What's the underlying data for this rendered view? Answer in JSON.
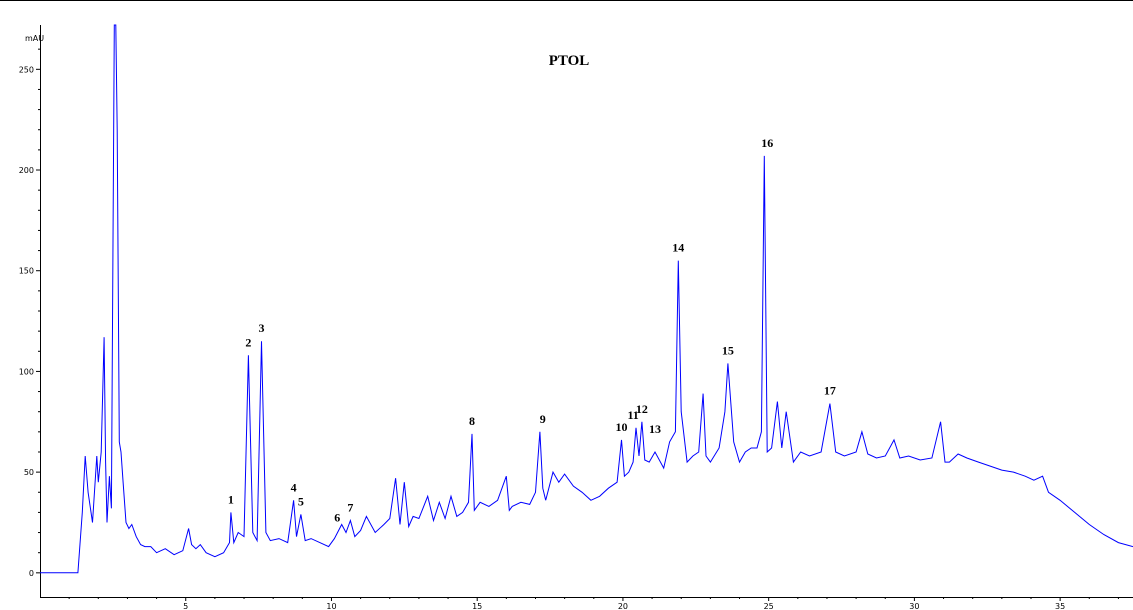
{
  "chart_data": {
    "type": "line",
    "title": "PTOL",
    "ylabel": "mAU",
    "xlabel": "",
    "xlim": [
      0,
      37.5
    ],
    "ylim": [
      -12,
      272
    ],
    "grid": false,
    "line_color": "#0000ff",
    "y_ticks": [
      "0",
      "50",
      "100",
      "150",
      "200",
      "250"
    ],
    "x_ticks": [
      "5",
      "10",
      "15",
      "20",
      "25",
      "30",
      "35"
    ],
    "series": [
      {
        "x": [
          0,
          1.3,
          1.45,
          1.55,
          1.65,
          1.8,
          1.95,
          2.0,
          2.1,
          2.2,
          2.25,
          2.3,
          2.38,
          2.45,
          2.55,
          2.6,
          2.65,
          2.72,
          2.78,
          2.85,
          2.95,
          3.05,
          3.15,
          3.3,
          3.45,
          3.6,
          3.8,
          4.0,
          4.3,
          4.6,
          4.9,
          5.1,
          5.2,
          5.35,
          5.5,
          5.7,
          6.0,
          6.3,
          6.5,
          6.55,
          6.65,
          6.8,
          7.0,
          7.15,
          7.3,
          7.45,
          7.6,
          7.75,
          7.9,
          8.2,
          8.5,
          8.7,
          8.8,
          8.95,
          9.1,
          9.3,
          9.6,
          9.9,
          10.1,
          10.35,
          10.5,
          10.65,
          10.8,
          11.0,
          11.2,
          11.5,
          11.8,
          12.0,
          12.2,
          12.35,
          12.5,
          12.65,
          12.8,
          13.0,
          13.3,
          13.5,
          13.7,
          13.9,
          14.1,
          14.3,
          14.5,
          14.7,
          14.82,
          14.9,
          15.1,
          15.4,
          15.7,
          16.0,
          16.1,
          16.2,
          16.5,
          16.8,
          17.0,
          17.15,
          17.25,
          17.35,
          17.6,
          17.8,
          18.0,
          18.3,
          18.6,
          18.9,
          19.2,
          19.5,
          19.8,
          19.95,
          20.05,
          20.2,
          20.35,
          20.45,
          20.55,
          20.65,
          20.75,
          20.9,
          21.1,
          21.4,
          21.6,
          21.8,
          21.9,
          22.0,
          22.2,
          22.4,
          22.6,
          22.75,
          22.85,
          23.0,
          23.3,
          23.5,
          23.6,
          23.8,
          24.0,
          24.2,
          24.4,
          24.6,
          24.75,
          24.85,
          24.95,
          25.1,
          25.3,
          25.45,
          25.6,
          25.85,
          26.1,
          26.4,
          26.8,
          27.1,
          27.3,
          27.6,
          28.0,
          28.2,
          28.4,
          28.7,
          29.0,
          29.3,
          29.5,
          29.8,
          30.2,
          30.6,
          30.9,
          31.05,
          31.2,
          31.5,
          31.8,
          32.2,
          32.6,
          33.0,
          33.4,
          33.8,
          34.1,
          34.4,
          34.6,
          35.0,
          35.5,
          36.0,
          36.5,
          37.0,
          37.5
        ],
        "y": [
          0,
          0,
          30,
          58,
          40,
          25,
          58,
          45,
          60,
          117,
          55,
          25,
          48,
          32,
          272,
          272,
          220,
          65,
          60,
          45,
          25,
          22,
          24,
          18,
          14,
          13,
          13,
          10,
          12,
          9,
          11,
          22,
          14,
          12,
          14,
          10,
          8,
          10,
          15,
          30,
          15,
          20,
          18,
          108,
          20,
          16,
          115,
          20,
          16,
          17,
          15,
          36,
          18,
          29,
          16,
          17,
          15,
          13,
          17,
          24,
          20,
          26,
          18,
          21,
          28,
          20,
          24,
          27,
          47,
          24,
          45,
          23,
          28,
          27,
          38,
          26,
          35,
          27,
          38,
          28,
          30,
          35,
          69,
          31,
          35,
          33,
          36,
          48,
          31,
          33,
          35,
          34,
          40,
          70,
          42,
          36,
          50,
          45,
          49,
          43,
          40,
          36,
          38,
          42,
          45,
          66,
          48,
          50,
          55,
          72,
          58,
          75,
          56,
          55,
          60,
          52,
          65,
          70,
          155,
          80,
          55,
          58,
          60,
          89,
          58,
          55,
          62,
          80,
          104,
          65,
          55,
          60,
          62,
          62,
          70,
          207,
          60,
          62,
          85,
          62,
          80,
          55,
          60,
          58,
          60,
          84,
          60,
          58,
          60,
          70,
          59,
          57,
          58,
          66,
          57,
          58,
          56,
          57,
          75,
          55,
          55,
          59,
          57,
          55,
          53,
          51,
          50,
          48,
          46,
          48,
          40,
          36,
          30,
          24,
          19,
          15,
          13
        ]
      }
    ],
    "peak_labels": [
      {
        "text": "1",
        "x": 6.55,
        "y": 30
      },
      {
        "text": "2",
        "x": 7.15,
        "y": 108
      },
      {
        "text": "3",
        "x": 7.6,
        "y": 115
      },
      {
        "text": "4",
        "x": 8.7,
        "y": 36
      },
      {
        "text": "5",
        "x": 8.95,
        "y": 29
      },
      {
        "text": "6",
        "x": 10.2,
        "y": 21
      },
      {
        "text": "7",
        "x": 10.65,
        "y": 26
      },
      {
        "text": "8",
        "x": 14.82,
        "y": 69
      },
      {
        "text": "9",
        "x": 17.25,
        "y": 70
      },
      {
        "text": "10",
        "x": 19.95,
        "y": 66
      },
      {
        "text": "11",
        "x": 20.35,
        "y": 72
      },
      {
        "text": "12",
        "x": 20.65,
        "y": 75
      },
      {
        "text": "13",
        "x": 21.1,
        "y": 65
      },
      {
        "text": "14",
        "x": 21.9,
        "y": 155
      },
      {
        "text": "15",
        "x": 23.6,
        "y": 104
      },
      {
        "text": "16",
        "x": 24.95,
        "y": 207
      },
      {
        "text": "17",
        "x": 27.1,
        "y": 84
      }
    ]
  }
}
